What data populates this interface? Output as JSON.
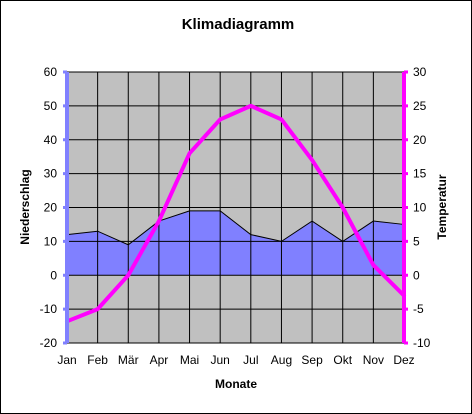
{
  "chart_data": {
    "type": "area",
    "title": "Klimadiagramm",
    "xlabel": "Monate",
    "ylabel_left": "Niederschlag",
    "ylabel_right": "Temperatur",
    "categories": [
      "Jan",
      "Feb",
      "Mär",
      "Apr",
      "Mai",
      "Jun",
      "Jul",
      "Aug",
      "Sep",
      "Okt",
      "Nov",
      "Dez"
    ],
    "ylim_left": [
      -20,
      60
    ],
    "yticks_left": [
      -20,
      -10,
      0,
      10,
      20,
      30,
      40,
      50,
      60
    ],
    "ylim_right": [
      -10,
      30
    ],
    "yticks_right": [
      -10,
      -5,
      0,
      5,
      10,
      15,
      20,
      25,
      30
    ],
    "grid": true,
    "series": [
      {
        "name": "Niederschlag",
        "type": "area",
        "axis": "left",
        "values": [
          12,
          13,
          9,
          16,
          19,
          19,
          12,
          10,
          16,
          10,
          16,
          15
        ]
      },
      {
        "name": "Temperatur",
        "type": "line",
        "axis": "right",
        "values": [
          -6.8,
          -5,
          0,
          8,
          18,
          23,
          25,
          23,
          17,
          10,
          1.5,
          -3
        ]
      }
    ],
    "colors": {
      "plot_background": "#c0c0c0",
      "area_fill": "#8080ff",
      "line": "#ff00ff",
      "left_axis": "#8080ff",
      "right_axis": "#ff00ff",
      "grid": "#000000"
    }
  }
}
